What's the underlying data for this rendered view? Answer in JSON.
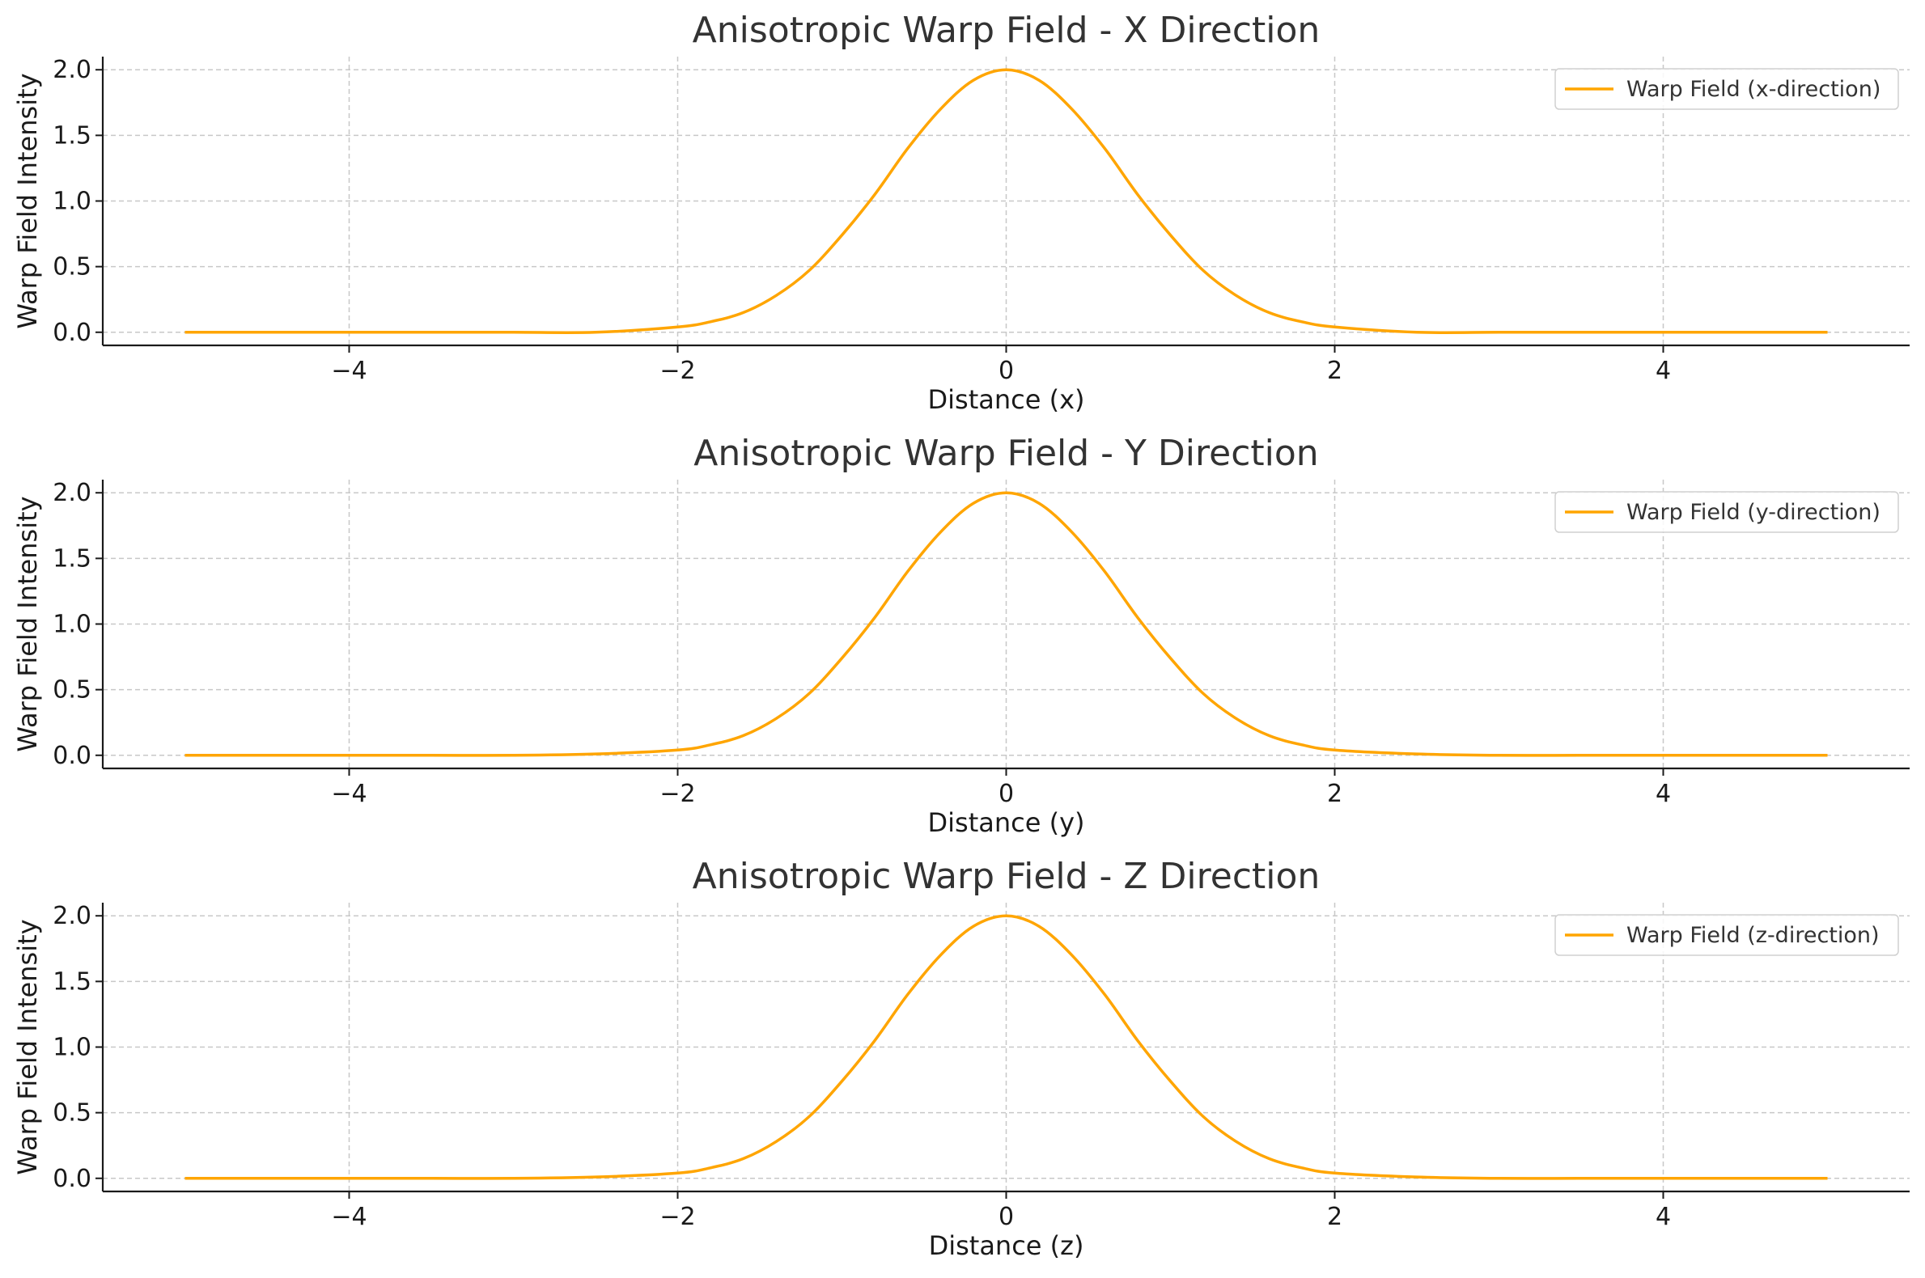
{
  "chart_data": [
    {
      "type": "line",
      "title": "Anisotropic Warp Field - X Direction",
      "xlabel": "Distance (x)",
      "ylabel": "Warp Field Intensity",
      "xlim": [
        -5.5,
        5.5
      ],
      "ylim": [
        -0.1,
        2.1
      ],
      "xticks": [
        -4,
        -2,
        0,
        2,
        4
      ],
      "yticks": [
        0.0,
        0.5,
        1.0,
        1.5,
        2.0
      ],
      "xtick_labels": [
        "−4",
        "−2",
        "0",
        "2",
        "4"
      ],
      "ytick_labels": [
        "0.0",
        "0.5",
        "1.0",
        "1.5",
        "2.0"
      ],
      "grid": true,
      "legend_position": "top-right",
      "series": [
        {
          "name": "Warp Field (x-direction)",
          "color": "#FFA500",
          "x": [
            -5.0,
            -4.5,
            -4.0,
            -3.5,
            -3.0,
            -2.5,
            -2.0,
            -1.8,
            -1.6,
            -1.4,
            -1.2,
            -1.0,
            -0.8,
            -0.6,
            -0.4,
            -0.2,
            0.0,
            0.2,
            0.4,
            0.6,
            0.8,
            1.0,
            1.2,
            1.4,
            1.6,
            1.8,
            2.0,
            2.5,
            3.0,
            3.5,
            4.0,
            4.5,
            5.0
          ],
          "y": [
            0.0,
            0.0,
            0.0,
            0.0,
            0.0,
            0.0,
            0.04,
            0.08,
            0.15,
            0.28,
            0.47,
            0.74,
            1.05,
            1.4,
            1.7,
            1.92,
            2.0,
            1.92,
            1.7,
            1.4,
            1.05,
            0.74,
            0.47,
            0.28,
            0.15,
            0.08,
            0.04,
            0.0,
            0.0,
            0.0,
            0.0,
            0.0,
            0.0
          ]
        }
      ]
    },
    {
      "type": "line",
      "title": "Anisotropic Warp Field - Y Direction",
      "xlabel": "Distance (y)",
      "ylabel": "Warp Field Intensity",
      "xlim": [
        -5.5,
        5.5
      ],
      "ylim": [
        -0.1,
        2.1
      ],
      "xticks": [
        -4,
        -2,
        0,
        2,
        4
      ],
      "yticks": [
        0.0,
        0.5,
        1.0,
        1.5,
        2.0
      ],
      "xtick_labels": [
        "−4",
        "−2",
        "0",
        "2",
        "4"
      ],
      "ytick_labels": [
        "0.0",
        "0.5",
        "1.0",
        "1.5",
        "2.0"
      ],
      "grid": true,
      "legend_position": "top-right",
      "series": [
        {
          "name": "Warp Field (y-direction)",
          "color": "#FFA500",
          "x": [
            -5.0,
            -4.5,
            -4.0,
            -3.5,
            -3.0,
            -2.5,
            -2.0,
            -1.8,
            -1.6,
            -1.4,
            -1.2,
            -1.0,
            -0.8,
            -0.6,
            -0.4,
            -0.2,
            0.0,
            0.2,
            0.4,
            0.6,
            0.8,
            1.0,
            1.2,
            1.4,
            1.6,
            1.8,
            2.0,
            2.5,
            3.0,
            3.5,
            4.0,
            4.5,
            5.0
          ],
          "y": [
            0.0,
            0.0,
            0.0,
            0.0,
            0.0,
            0.01,
            0.04,
            0.08,
            0.15,
            0.28,
            0.47,
            0.74,
            1.05,
            1.4,
            1.7,
            1.92,
            2.0,
            1.92,
            1.7,
            1.4,
            1.05,
            0.74,
            0.47,
            0.28,
            0.15,
            0.08,
            0.04,
            0.01,
            0.0,
            0.0,
            0.0,
            0.0,
            0.0
          ]
        }
      ]
    },
    {
      "type": "line",
      "title": "Anisotropic Warp Field - Z Direction",
      "xlabel": "Distance (z)",
      "ylabel": "Warp Field Intensity",
      "xlim": [
        -5.5,
        5.5
      ],
      "ylim": [
        -0.1,
        2.1
      ],
      "xticks": [
        -4,
        -2,
        0,
        2,
        4
      ],
      "yticks": [
        0.0,
        0.5,
        1.0,
        1.5,
        2.0
      ],
      "xtick_labels": [
        "−4",
        "−2",
        "0",
        "2",
        "4"
      ],
      "ytick_labels": [
        "0.0",
        "0.5",
        "1.0",
        "1.5",
        "2.0"
      ],
      "grid": true,
      "legend_position": "top-right",
      "series": [
        {
          "name": "Warp Field (z-direction)",
          "color": "#FFA500",
          "x": [
            -5.0,
            -4.5,
            -4.0,
            -3.5,
            -3.0,
            -2.5,
            -2.0,
            -1.8,
            -1.6,
            -1.4,
            -1.2,
            -1.0,
            -0.8,
            -0.6,
            -0.4,
            -0.2,
            0.0,
            0.2,
            0.4,
            0.6,
            0.8,
            1.0,
            1.2,
            1.4,
            1.6,
            1.8,
            2.0,
            2.5,
            3.0,
            3.5,
            4.0,
            4.5,
            5.0
          ],
          "y": [
            0.0,
            0.0,
            0.0,
            0.0,
            0.0,
            0.01,
            0.04,
            0.08,
            0.15,
            0.28,
            0.47,
            0.74,
            1.05,
            1.4,
            1.7,
            1.92,
            2.0,
            1.92,
            1.7,
            1.4,
            1.05,
            0.74,
            0.47,
            0.28,
            0.15,
            0.08,
            0.04,
            0.01,
            0.0,
            0.0,
            0.0,
            0.0,
            0.0
          ]
        }
      ]
    }
  ]
}
